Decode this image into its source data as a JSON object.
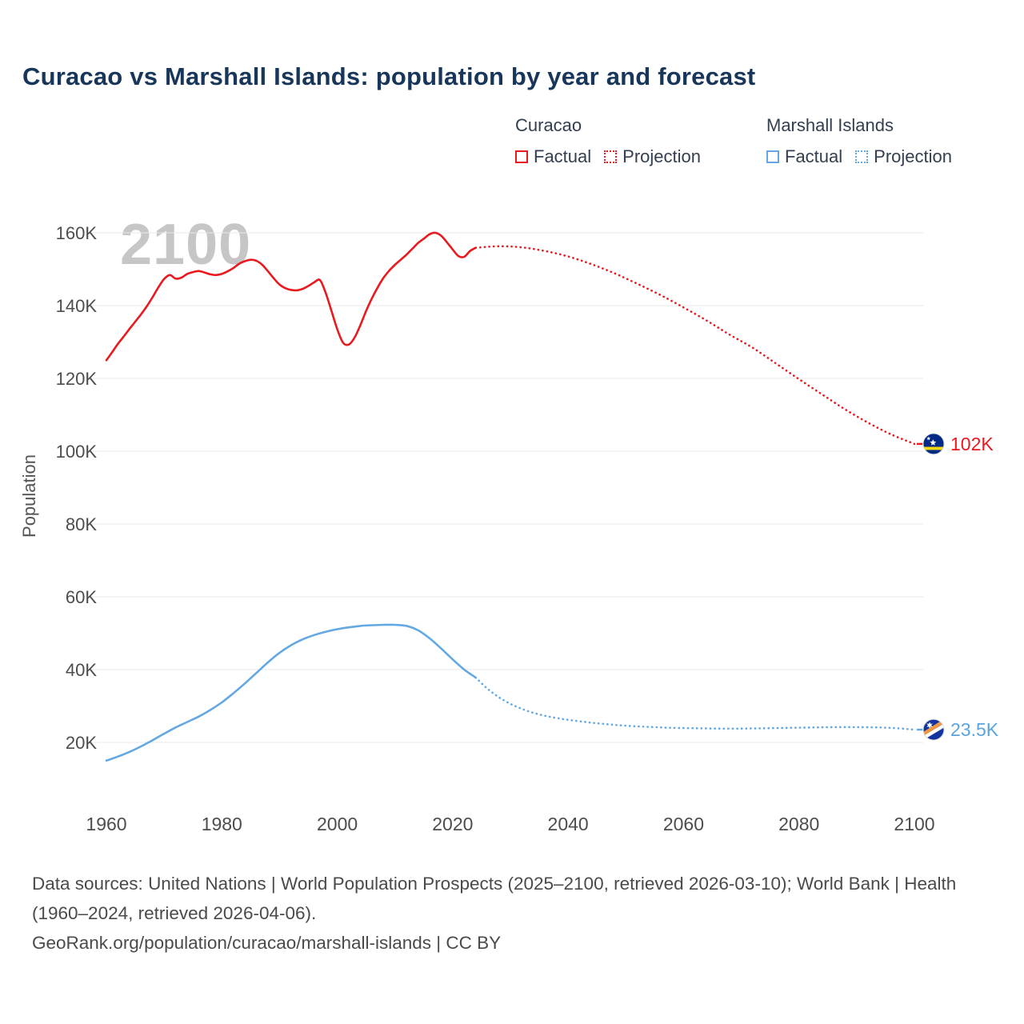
{
  "title": "Curacao vs Marshall Islands: population by year and forecast",
  "watermark": "2100",
  "legend": {
    "groups": [
      {
        "name": "Curacao",
        "items": [
          {
            "label": "Factual",
            "style": "solid"
          },
          {
            "label": "Projection",
            "style": "dotted"
          }
        ]
      },
      {
        "name": "Marshall Islands",
        "items": [
          {
            "label": "Factual",
            "style": "solid"
          },
          {
            "label": "Projection",
            "style": "dotted"
          }
        ]
      }
    ]
  },
  "colors": {
    "curacao": "#e8191f",
    "marshall": "#63a8e3",
    "title": "#17365a",
    "axis_text": "#4d4d4d",
    "grid": "#e8e8e8",
    "watermark": "#c6c6c6"
  },
  "footer": {
    "sources": "Data sources: United Nations | World Population Prospects (2025–2100, retrieved 2026-03-10); World Bank | Health (1960–2024, retrieved 2026-04-06).",
    "attribution": "GeoRank.org/population/curacao/marshall-islands | CC BY"
  },
  "chart_data": {
    "type": "line",
    "title": "Curacao vs Marshall Islands: population by year and forecast",
    "xlabel": "",
    "ylabel": "Population",
    "xlim": [
      1953,
      2118
    ],
    "ylim": [
      10,
      168
    ],
    "grid": true,
    "legend_position": "top",
    "xticks": [
      1960,
      1980,
      2000,
      2020,
      2040,
      2060,
      2080,
      2100
    ],
    "yticks": [
      20,
      40,
      60,
      80,
      100,
      120,
      140,
      160
    ],
    "ytick_labels": [
      "20K",
      "40K",
      "60K",
      "80K",
      "100K",
      "120K",
      "140K",
      "160K"
    ],
    "end_labels": {
      "curacao": "102K",
      "marshall": "23.5K"
    },
    "series": [
      {
        "id": "curacao-factual",
        "name": "Curacao Factual",
        "color": "#e8191f",
        "style": "solid",
        "points": [
          [
            1960,
            125
          ],
          [
            1961,
            127.2
          ],
          [
            1962,
            129.5
          ],
          [
            1963,
            131.5
          ],
          [
            1964,
            133.6
          ],
          [
            1965,
            135.6
          ],
          [
            1966,
            137.6
          ],
          [
            1967,
            139.8
          ],
          [
            1968,
            142.3
          ],
          [
            1969,
            145
          ],
          [
            1970,
            147.3
          ],
          [
            1971,
            148.4
          ],
          [
            1972,
            147.4
          ],
          [
            1973,
            147.7
          ],
          [
            1974,
            148.7
          ],
          [
            1975,
            149.2
          ],
          [
            1976,
            149.5
          ],
          [
            1977,
            149.1
          ],
          [
            1978,
            148.6
          ],
          [
            1979,
            148.4
          ],
          [
            1980,
            148.7
          ],
          [
            1981,
            149.4
          ],
          [
            1982,
            150.3
          ],
          [
            1983,
            151.5
          ],
          [
            1984,
            152.2
          ],
          [
            1985,
            152.6
          ],
          [
            1986,
            152.3
          ],
          [
            1987,
            151.2
          ],
          [
            1988,
            149.4
          ],
          [
            1989,
            147.5
          ],
          [
            1990,
            145.8
          ],
          [
            1991,
            144.8
          ],
          [
            1992,
            144.3
          ],
          [
            1993,
            144.2
          ],
          [
            1994,
            144.6
          ],
          [
            1995,
            145.4
          ],
          [
            1996,
            146.4
          ],
          [
            1997,
            147
          ],
          [
            1998,
            143.5
          ],
          [
            1999,
            138.5
          ],
          [
            2000,
            133.5
          ],
          [
            2001,
            129.8
          ],
          [
            2002,
            129.3
          ],
          [
            2003,
            131.2
          ],
          [
            2004,
            134.6
          ],
          [
            2005,
            138.5
          ],
          [
            2006,
            142
          ],
          [
            2007,
            145
          ],
          [
            2008,
            147.6
          ],
          [
            2009,
            149.6
          ],
          [
            2010,
            151.2
          ],
          [
            2011,
            152.6
          ],
          [
            2012,
            154
          ],
          [
            2013,
            155.6
          ],
          [
            2014,
            157.2
          ],
          [
            2015,
            158.4
          ],
          [
            2016,
            159.6
          ],
          [
            2017,
            160
          ],
          [
            2018,
            159.2
          ],
          [
            2019,
            157.4
          ],
          [
            2020,
            155.4
          ],
          [
            2021,
            153.6
          ],
          [
            2022,
            153.4
          ],
          [
            2023,
            155
          ],
          [
            2024,
            155.9
          ]
        ]
      },
      {
        "id": "curacao-projection",
        "name": "Curacao Projection",
        "color": "#e8191f",
        "style": "dotted",
        "points": [
          [
            2024,
            155.9
          ],
          [
            2028,
            156.3
          ],
          [
            2032,
            156
          ],
          [
            2036,
            155
          ],
          [
            2040,
            153.5
          ],
          [
            2044,
            151.4
          ],
          [
            2048,
            148.9
          ],
          [
            2052,
            146
          ],
          [
            2056,
            142.9
          ],
          [
            2060,
            139.5
          ],
          [
            2064,
            135.9
          ],
          [
            2068,
            132
          ],
          [
            2072,
            128.4
          ],
          [
            2076,
            124.1
          ],
          [
            2080,
            119.8
          ],
          [
            2084,
            115.6
          ],
          [
            2088,
            111.5
          ],
          [
            2092,
            107.8
          ],
          [
            2096,
            104.6
          ],
          [
            2100,
            102
          ]
        ]
      },
      {
        "id": "marshall-factual",
        "name": "Marshall Islands Factual",
        "color": "#63a8e3",
        "style": "solid",
        "points": [
          [
            1960,
            15
          ],
          [
            1962,
            16.1
          ],
          [
            1964,
            17.4
          ],
          [
            1966,
            18.9
          ],
          [
            1968,
            20.6
          ],
          [
            1970,
            22.4
          ],
          [
            1972,
            24.1
          ],
          [
            1974,
            25.6
          ],
          [
            1976,
            27.1
          ],
          [
            1978,
            28.9
          ],
          [
            1980,
            31
          ],
          [
            1982,
            33.5
          ],
          [
            1984,
            36.2
          ],
          [
            1986,
            39.1
          ],
          [
            1988,
            42
          ],
          [
            1990,
            44.6
          ],
          [
            1992,
            46.7
          ],
          [
            1994,
            48.3
          ],
          [
            1996,
            49.5
          ],
          [
            1998,
            50.4
          ],
          [
            2000,
            51.1
          ],
          [
            2002,
            51.6
          ],
          [
            2004,
            52
          ],
          [
            2006,
            52.2
          ],
          [
            2008,
            52.3
          ],
          [
            2010,
            52.3
          ],
          [
            2012,
            52
          ],
          [
            2014,
            50.8
          ],
          [
            2016,
            48.6
          ],
          [
            2018,
            45.8
          ],
          [
            2020,
            42.8
          ],
          [
            2022,
            40
          ],
          [
            2024,
            37.8
          ]
        ]
      },
      {
        "id": "marshall-projection",
        "name": "Marshall Islands Projection",
        "color": "#63a8e3",
        "style": "dotted",
        "points": [
          [
            2024,
            37.8
          ],
          [
            2026,
            34.8
          ],
          [
            2028,
            32.4
          ],
          [
            2030,
            30.6
          ],
          [
            2032,
            29.2
          ],
          [
            2034,
            28.1
          ],
          [
            2036,
            27.3
          ],
          [
            2038,
            26.7
          ],
          [
            2040,
            26.2
          ],
          [
            2043,
            25.6
          ],
          [
            2046,
            25.1
          ],
          [
            2049,
            24.7
          ],
          [
            2052,
            24.4
          ],
          [
            2055,
            24.2
          ],
          [
            2058,
            24
          ],
          [
            2062,
            23.9
          ],
          [
            2066,
            23.8
          ],
          [
            2070,
            23.8
          ],
          [
            2074,
            23.9
          ],
          [
            2078,
            24
          ],
          [
            2082,
            24.1
          ],
          [
            2086,
            24.2
          ],
          [
            2090,
            24.2
          ],
          [
            2094,
            24.1
          ],
          [
            2097,
            23.9
          ],
          [
            2100,
            23.5
          ]
        ]
      }
    ]
  }
}
